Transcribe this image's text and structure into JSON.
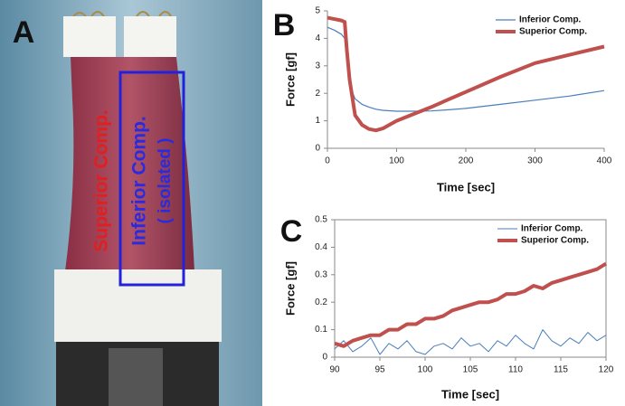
{
  "panel_a": {
    "label": "A",
    "annotations": [
      "Superior Comp.",
      "Inferior Comp.",
      "( isolated )"
    ]
  },
  "chart_data": [
    {
      "type": "line",
      "label": "B",
      "xlabel": "Time [sec]",
      "ylabel": "Force [gf]",
      "x": [
        0,
        10,
        20,
        25,
        28,
        32,
        40,
        50,
        60,
        70,
        80,
        100,
        125,
        150,
        175,
        200,
        250,
        300,
        350,
        400
      ],
      "series": [
        {
          "name": "Inferior Comp.",
          "color": "#4a7ebb",
          "line_width": 1.2,
          "values": [
            4.4,
            4.3,
            4.15,
            4.0,
            3.2,
            2.3,
            1.8,
            1.6,
            1.5,
            1.42,
            1.38,
            1.35,
            1.35,
            1.36,
            1.4,
            1.45,
            1.6,
            1.75,
            1.9,
            2.1
          ]
        },
        {
          "name": "Superior Comp.",
          "color": "#c0504d",
          "line_width": 4,
          "values": [
            4.75,
            4.7,
            4.65,
            4.6,
            3.6,
            2.5,
            1.2,
            0.85,
            0.7,
            0.65,
            0.72,
            1.0,
            1.25,
            1.5,
            1.78,
            2.05,
            2.6,
            3.1,
            3.4,
            3.7
          ]
        }
      ],
      "xlim": [
        0,
        400
      ],
      "xticks": [
        0,
        100,
        200,
        300,
        400
      ],
      "ylim": [
        0,
        5
      ],
      "yticks": [
        0,
        1,
        2,
        3,
        4,
        5
      ],
      "legend": "upper right"
    },
    {
      "type": "line",
      "label": "C",
      "xlabel": "Time [sec]",
      "ylabel": "Force [gf]",
      "x": [
        90,
        91,
        92,
        93,
        94,
        95,
        96,
        97,
        98,
        99,
        100,
        101,
        102,
        103,
        104,
        105,
        106,
        107,
        108,
        109,
        110,
        111,
        112,
        113,
        114,
        115,
        116,
        117,
        118,
        119,
        120
      ],
      "series": [
        {
          "name": "Inferior Comp.",
          "color": "#4a7ebb",
          "line_width": 1,
          "values": [
            0.03,
            0.06,
            0.02,
            0.04,
            0.07,
            0.01,
            0.05,
            0.03,
            0.06,
            0.02,
            0.01,
            0.04,
            0.05,
            0.03,
            0.07,
            0.04,
            0.05,
            0.02,
            0.06,
            0.04,
            0.08,
            0.05,
            0.03,
            0.1,
            0.06,
            0.04,
            0.07,
            0.05,
            0.09,
            0.06,
            0.08
          ]
        },
        {
          "name": "Superior Comp.",
          "color": "#c0504d",
          "line_width": 4,
          "values": [
            0.05,
            0.04,
            0.06,
            0.07,
            0.08,
            0.08,
            0.1,
            0.1,
            0.12,
            0.12,
            0.14,
            0.14,
            0.15,
            0.17,
            0.18,
            0.19,
            0.2,
            0.2,
            0.21,
            0.23,
            0.23,
            0.24,
            0.26,
            0.25,
            0.27,
            0.28,
            0.29,
            0.3,
            0.31,
            0.32,
            0.34
          ]
        }
      ],
      "xlim": [
        90,
        120
      ],
      "xticks": [
        90,
        95,
        100,
        105,
        110,
        115,
        120
      ],
      "ylim": [
        0,
        0.5
      ],
      "yticks": [
        0,
        0.1,
        0.2,
        0.3,
        0.4,
        0.5
      ],
      "legend": "upper right"
    }
  ]
}
